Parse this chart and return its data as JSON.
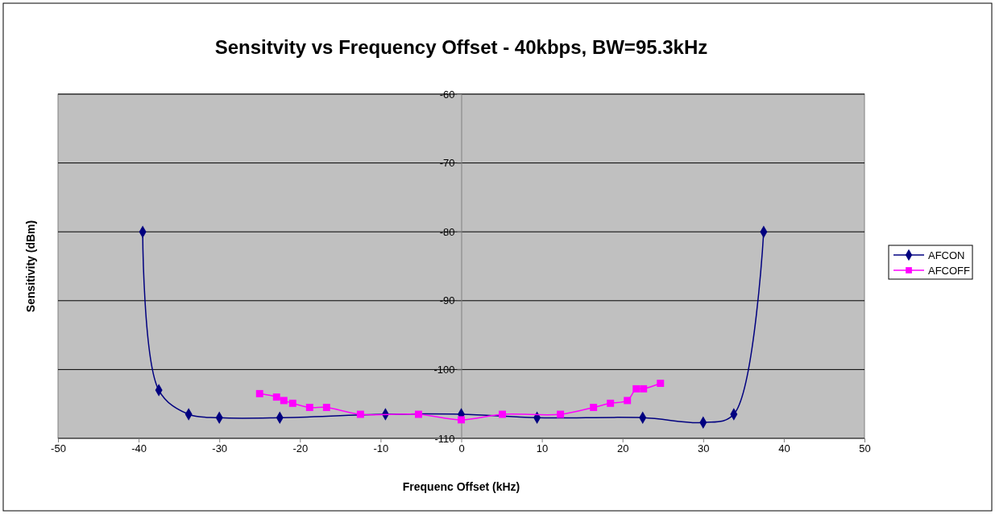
{
  "chart_data": {
    "type": "line",
    "title": "Sensitvity vs Frequency Offset - 40kbps, BW=95.3kHz",
    "xlabel": "Frequenc Offset (kHz)",
    "ylabel": "Sensitivity (dBm)",
    "xlim": [
      -50,
      50
    ],
    "xticks": [
      -50,
      -40,
      -30,
      -20,
      -10,
      0,
      10,
      20,
      30,
      40,
      50
    ],
    "ylim": [
      -110,
      -60
    ],
    "yticks": [
      -110,
      -100,
      -90,
      -80,
      -70,
      -60
    ],
    "grid": "y",
    "legend": "right",
    "series": [
      {
        "name": "AFCON",
        "color": "#000080",
        "marker": "diamond",
        "x": [
          -39.5,
          -37.5,
          -33.8,
          -30,
          -22.5,
          -9.4,
          0,
          9.4,
          22.5,
          30,
          33.8,
          37.5
        ],
        "values": [
          -80,
          -103,
          -106.5,
          -107,
          -107,
          -106.5,
          -106.5,
          -107,
          -107,
          -107.7,
          -106.5,
          -80
        ]
      },
      {
        "name": "AFCOFF",
        "color": "#ff00ff",
        "marker": "square",
        "x": [
          -25,
          -22.9,
          -22,
          -20.9,
          -18.8,
          -16.7,
          -12.5,
          -5.3,
          0,
          5.1,
          12.3,
          16.4,
          18.5,
          20.6,
          21.7,
          22.6,
          24.7
        ],
        "values": [
          -103.5,
          -104,
          -104.5,
          -104.9,
          -105.5,
          -105.5,
          -106.5,
          -106.5,
          -107.3,
          -106.5,
          -106.5,
          -105.5,
          -104.9,
          -104.5,
          -102.8,
          -102.8,
          -102
        ]
      }
    ]
  }
}
